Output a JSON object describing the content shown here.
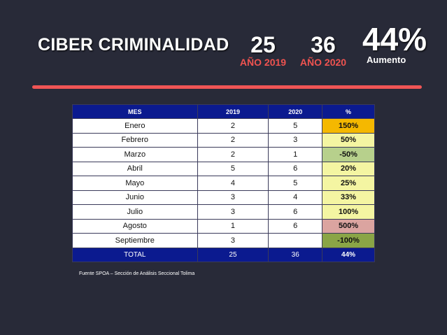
{
  "header": {
    "title": "CIBER CRIMINALIDAD",
    "stat_2019": {
      "value": "25",
      "label": "AÑO 2019"
    },
    "stat_2020": {
      "value": "36",
      "label": "AÑO 2020"
    },
    "stat_increase": {
      "value": "44%",
      "label": "Aumento"
    }
  },
  "colors": {
    "background": "#282a38",
    "accent_red": "#f05555",
    "table_header": "#0b1a8f",
    "pct_orange": "#f5b800",
    "pct_light_yellow": "#f4f5a2",
    "pct_light_green": "#b7d08c",
    "pct_pink": "#dba4a0",
    "pct_dark_green": "#8aa546"
  },
  "table": {
    "headers": [
      "MES",
      "2019",
      "2020",
      "%"
    ],
    "rows": [
      {
        "mes": "Enero",
        "y2019": "2",
        "y2020": "5",
        "pct": "150%",
        "pct_color": "#f5b800"
      },
      {
        "mes": "Febrero",
        "y2019": "2",
        "y2020": "3",
        "pct": "50%",
        "pct_color": "#f4f5a2"
      },
      {
        "mes": "Marzo",
        "y2019": "2",
        "y2020": "1",
        "pct": "-50%",
        "pct_color": "#b7d08c"
      },
      {
        "mes": "Abril",
        "y2019": "5",
        "y2020": "6",
        "pct": "20%",
        "pct_color": "#f4f5a2"
      },
      {
        "mes": "Mayo",
        "y2019": "4",
        "y2020": "5",
        "pct": "25%",
        "pct_color": "#f4f5a2"
      },
      {
        "mes": "Junio",
        "y2019": "3",
        "y2020": "4",
        "pct": "33%",
        "pct_color": "#f4f5a2"
      },
      {
        "mes": "Julio",
        "y2019": "3",
        "y2020": "6",
        "pct": "100%",
        "pct_color": "#f4f5a2"
      },
      {
        "mes": "Agosto",
        "y2019": "1",
        "y2020": "6",
        "pct": "500%",
        "pct_color": "#dba4a0"
      },
      {
        "mes": "Septiembre",
        "y2019": "3",
        "y2020": "",
        "pct": "-100%",
        "pct_color": "#8aa546"
      }
    ],
    "total": {
      "mes": "TOTAL",
      "y2019": "25",
      "y2020": "36",
      "pct": "44%"
    }
  },
  "source": "Fuente SPOA – Sección de Análisis Seccional Tolima"
}
